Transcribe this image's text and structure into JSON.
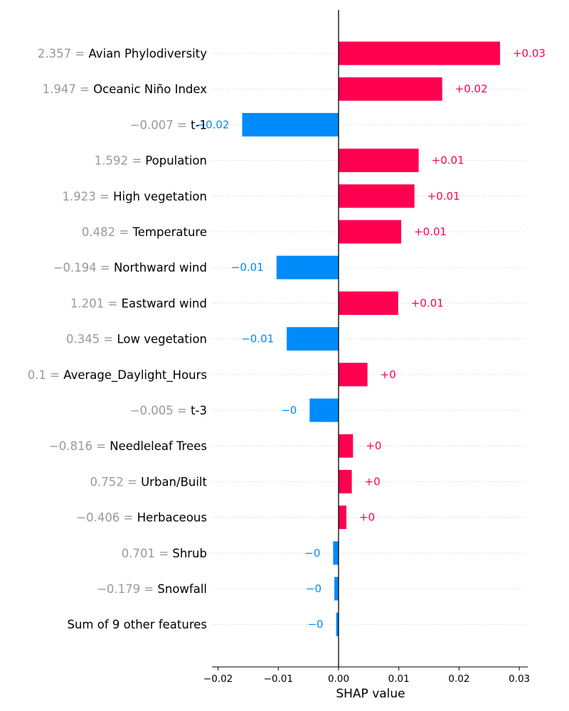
{
  "chart_data": {
    "type": "bar",
    "orientation": "horizontal",
    "xlabel": "SHAP value",
    "xlim": [
      -0.0205,
      0.031
    ],
    "xticks": [
      -0.02,
      -0.01,
      0.0,
      0.01,
      0.02,
      0.03
    ],
    "xtick_labels": [
      "−0.02",
      "−0.01",
      "0.00",
      "0.01",
      "0.02",
      "0.03"
    ],
    "colors": {
      "positive": "#ff0051",
      "negative": "#008bfb"
    },
    "grid": "dotted horizontal row lines",
    "zero_line": true,
    "rows": [
      {
        "feature_value": "2.357",
        "feature": "Avian Phylodiversity",
        "value": 0.0268,
        "label": "+0.03"
      },
      {
        "feature_value": "1.947",
        "feature": "Oceanic Niño Index",
        "value": 0.0172,
        "label": "+0.02"
      },
      {
        "feature_value": "−0.007",
        "feature": "t-1",
        "value": -0.016,
        "label": "−0.02"
      },
      {
        "feature_value": "1.592",
        "feature": "Population",
        "value": 0.0133,
        "label": "+0.01"
      },
      {
        "feature_value": "1.923",
        "feature": "High vegetation",
        "value": 0.0126,
        "label": "+0.01"
      },
      {
        "feature_value": "0.482",
        "feature": "Temperature",
        "value": 0.0104,
        "label": "+0.01"
      },
      {
        "feature_value": "−0.194",
        "feature": "Northward wind",
        "value": -0.0103,
        "label": "−0.01"
      },
      {
        "feature_value": "1.201",
        "feature": "Eastward wind",
        "value": 0.0099,
        "label": "+0.01"
      },
      {
        "feature_value": "0.345",
        "feature": "Low vegetation",
        "value": -0.0086,
        "label": "−0.01"
      },
      {
        "feature_value": "0.1",
        "feature": "Average_Daylight_Hours",
        "value": 0.0048,
        "label": "+0"
      },
      {
        "feature_value": "−0.005",
        "feature": "t-3",
        "value": -0.0048,
        "label": "−0"
      },
      {
        "feature_value": "−0.816",
        "feature": "Needleleaf Trees",
        "value": 0.0024,
        "label": "+0"
      },
      {
        "feature_value": "0.752",
        "feature": "Urban/Built",
        "value": 0.0022,
        "label": "+0"
      },
      {
        "feature_value": "−0.406",
        "feature": "Herbaceous",
        "value": 0.0013,
        "label": "+0"
      },
      {
        "feature_value": "0.701",
        "feature": "Shrub",
        "value": -0.0009,
        "label": "−0"
      },
      {
        "feature_value": "−0.179",
        "feature": "Snowfall",
        "value": -0.0007,
        "label": "−0"
      },
      {
        "feature_value": "",
        "feature": "Sum of 9 other features",
        "value": -0.0004,
        "label": "−0"
      }
    ]
  }
}
